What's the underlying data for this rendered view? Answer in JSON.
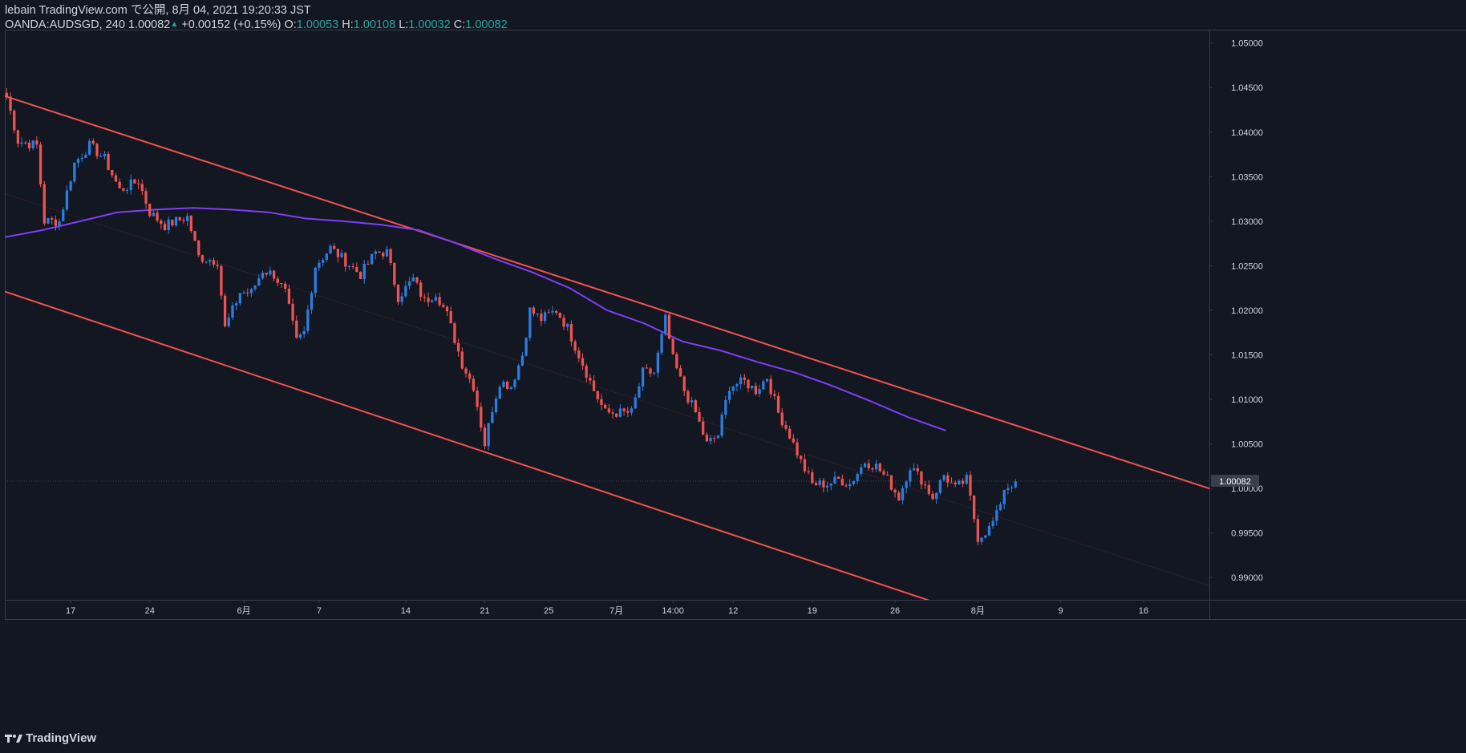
{
  "header": {
    "publish_line": "lebain TradingView.com で公開, 8月 04, 2021 19:20:33 JST",
    "symbol": "OANDA:AUDSGD, 240",
    "last": "1.00082",
    "up_arrow": "▲",
    "change": "+0.00152 (+0.15%)",
    "o_label": "O:",
    "o_value": "1.00053",
    "h_label": "H:",
    "h_value": "1.00108",
    "l_label": "L:",
    "l_value": "1.00032",
    "c_label": "C:",
    "c_value": "1.00082"
  },
  "brand": {
    "logo_icon": "tradingview-logo-icon",
    "name": "TradingView"
  },
  "colors": {
    "background": "#131722",
    "up": "#2a7de1",
    "down": "#ef5350",
    "channel": "#f0524f",
    "ma": "#7e3ff2",
    "text": "#d1d4dc",
    "grid": "#363c4e",
    "change_up": "#26a69a"
  },
  "chart_data": {
    "type": "candlestick",
    "symbol": "OANDA:AUDSGD",
    "interval": "240",
    "price_axis": {
      "range": [
        0.9875,
        1.0515
      ],
      "tick_labels": [
        "1.05000",
        "1.04500",
        "1.04000",
        "1.03500",
        "1.03000",
        "1.02500",
        "1.02000",
        "1.01500",
        "1.01000",
        "1.00500",
        "1.00000",
        "0.99500",
        "0.99000"
      ]
    },
    "last_price_label": "1.00082",
    "last_price": 1.00082,
    "x_ticks": [
      "17",
      "24",
      "6月",
      "7",
      "14",
      "21",
      "25",
      "7月",
      "14:00",
      "12",
      "19",
      "26",
      "8月",
      "9",
      "16"
    ],
    "x_tick_bars": [
      17,
      38,
      63,
      83,
      106,
      127,
      144,
      162,
      177,
      193,
      214,
      236,
      258,
      280,
      302
    ],
    "bar_count": 320,
    "bars_drawn": 268,
    "anchors": [
      [
        0,
        1.044
      ],
      [
        3,
        1.039
      ],
      [
        8,
        1.0385
      ],
      [
        10,
        1.03
      ],
      [
        14,
        1.03
      ],
      [
        18,
        1.0365
      ],
      [
        22,
        1.0385
      ],
      [
        26,
        1.037
      ],
      [
        30,
        1.0335
      ],
      [
        35,
        1.0345
      ],
      [
        38,
        1.031
      ],
      [
        42,
        1.0295
      ],
      [
        48,
        1.0305
      ],
      [
        51,
        1.026
      ],
      [
        56,
        1.0255
      ],
      [
        58,
        1.018
      ],
      [
        62,
        1.022
      ],
      [
        65,
        1.022
      ],
      [
        68,
        1.0245
      ],
      [
        71,
        1.024
      ],
      [
        74,
        1.022
      ],
      [
        77,
        1.0165
      ],
      [
        79,
        1.0175
      ],
      [
        82,
        1.025
      ],
      [
        86,
        1.027
      ],
      [
        90,
        1.0255
      ],
      [
        94,
        1.024
      ],
      [
        98,
        1.0265
      ],
      [
        101,
        1.0265
      ],
      [
        104,
        1.0215
      ],
      [
        108,
        1.0235
      ],
      [
        111,
        1.021
      ],
      [
        114,
        1.022
      ],
      [
        117,
        1.0195
      ],
      [
        121,
        1.014
      ],
      [
        124,
        1.0115
      ],
      [
        127,
        1.005
      ],
      [
        129,
        1.009
      ],
      [
        131,
        1.012
      ],
      [
        134,
        1.0115
      ],
      [
        137,
        1.015
      ],
      [
        139,
        1.02
      ],
      [
        142,
        1.019
      ],
      [
        146,
        1.02
      ],
      [
        149,
        1.018
      ],
      [
        152,
        1.015
      ],
      [
        156,
        1.011
      ],
      [
        159,
        1.0085
      ],
      [
        163,
        1.0085
      ],
      [
        166,
        1.0085
      ],
      [
        169,
        1.013
      ],
      [
        172,
        1.013
      ],
      [
        175,
        1.019
      ],
      [
        177,
        1.0145
      ],
      [
        180,
        1.011
      ],
      [
        183,
        1.0085
      ],
      [
        186,
        1.005
      ],
      [
        189,
        1.006
      ],
      [
        192,
        1.0115
      ],
      [
        196,
        1.012
      ],
      [
        199,
        1.011
      ],
      [
        202,
        1.0125
      ],
      [
        205,
        1.0085
      ],
      [
        208,
        1.006
      ],
      [
        211,
        1.003
      ],
      [
        214,
        1.0005
      ],
      [
        218,
        1.0005
      ],
      [
        221,
        1.001
      ],
      [
        224,
        1.0005
      ],
      [
        228,
        1.003
      ],
      [
        231,
        1.0025
      ],
      [
        234,
        1.001
      ],
      [
        237,
        0.999
      ],
      [
        240,
        1.0025
      ],
      [
        243,
        1.001
      ],
      [
        246,
        0.999
      ],
      [
        249,
        1.0015
      ],
      [
        252,
        1.0
      ],
      [
        255,
        1.001
      ],
      [
        258,
        0.9945
      ],
      [
        261,
        0.9955
      ],
      [
        263,
        0.997
      ],
      [
        265,
        1.0
      ],
      [
        268,
        1.0008
      ]
    ],
    "ma_points": [
      [
        0,
        1.0282
      ],
      [
        10,
        1.029
      ],
      [
        20,
        1.03
      ],
      [
        30,
        1.031
      ],
      [
        40,
        1.0313
      ],
      [
        50,
        1.0315
      ],
      [
        60,
        1.0313
      ],
      [
        70,
        1.031
      ],
      [
        80,
        1.0303
      ],
      [
        90,
        1.03
      ],
      [
        100,
        1.0296
      ],
      [
        110,
        1.029
      ],
      [
        120,
        1.0275
      ],
      [
        130,
        1.0258
      ],
      [
        140,
        1.0243
      ],
      [
        150,
        1.0225
      ],
      [
        160,
        1.02
      ],
      [
        170,
        1.0185
      ],
      [
        180,
        1.0165
      ],
      [
        190,
        1.0155
      ],
      [
        200,
        1.0142
      ],
      [
        210,
        1.013
      ],
      [
        220,
        1.0115
      ],
      [
        230,
        1.0098
      ],
      [
        240,
        1.008
      ],
      [
        250,
        1.0065
      ]
    ],
    "channel": {
      "upper": [
        [
          0,
          1.04405
        ],
        [
          320,
          1.0
        ]
      ],
      "lower": [
        [
          0,
          1.0221
        ],
        [
          250,
          0.9868
        ]
      ],
      "middle": [
        [
          0,
          1.0331
        ],
        [
          320,
          0.9891
        ]
      ]
    }
  }
}
